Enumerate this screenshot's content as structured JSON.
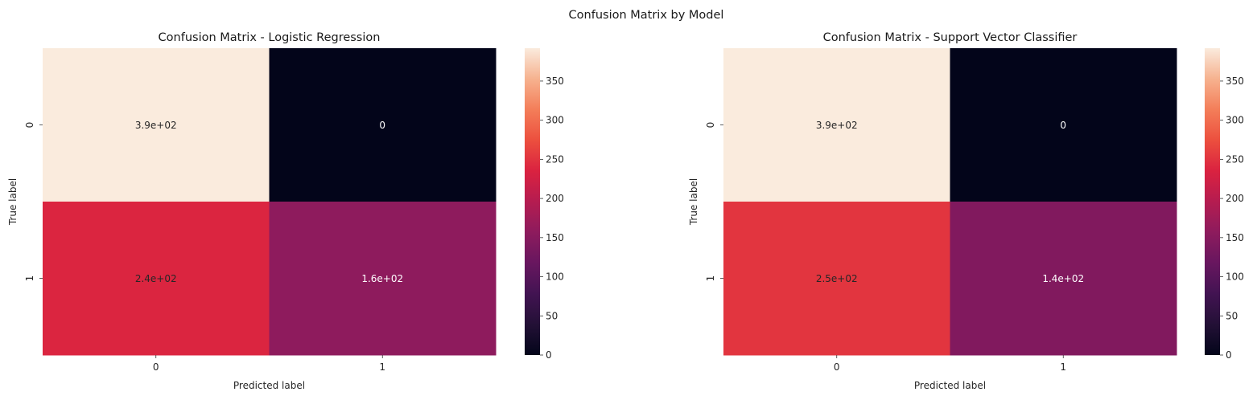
{
  "figure": {
    "suptitle": "Confusion Matrix by Model"
  },
  "chart_data": [
    {
      "type": "heatmap",
      "title": "Confusion Matrix - Logistic Regression",
      "xlabel": "Predicted label",
      "ylabel": "True label",
      "x_categories": [
        "0",
        "1"
      ],
      "y_categories": [
        "0",
        "1"
      ],
      "values": [
        [
          392,
          0
        ],
        [
          238,
          158
        ]
      ],
      "annotations": [
        [
          "3.9e+02",
          "0"
        ],
        [
          "2.4e+02",
          "1.6e+02"
        ]
      ],
      "colorbar": {
        "min": 0,
        "max": 392,
        "ticks": [
          0,
          50,
          100,
          150,
          200,
          250,
          300,
          350
        ],
        "tick_labels": [
          "0",
          "50",
          "100",
          "150",
          "200",
          "250",
          "300",
          "350"
        ]
      },
      "colormap": "rocket"
    },
    {
      "type": "heatmap",
      "title": "Confusion Matrix - Support Vector Classifier",
      "xlabel": "Predicted label",
      "ylabel": "True label",
      "x_categories": [
        "0",
        "1"
      ],
      "y_categories": [
        "0",
        "1"
      ],
      "values": [
        [
          392,
          0
        ],
        [
          252,
          144
        ]
      ],
      "annotations": [
        [
          "3.9e+02",
          "0"
        ],
        [
          "2.5e+02",
          "1.4e+02"
        ]
      ],
      "colorbar": {
        "min": 0,
        "max": 392,
        "ticks": [
          0,
          50,
          100,
          150,
          200,
          250,
          300,
          350
        ],
        "tick_labels": [
          "0",
          "50",
          "100",
          "150",
          "200",
          "250",
          "300",
          "350"
        ]
      },
      "colormap": "rocket"
    }
  ]
}
